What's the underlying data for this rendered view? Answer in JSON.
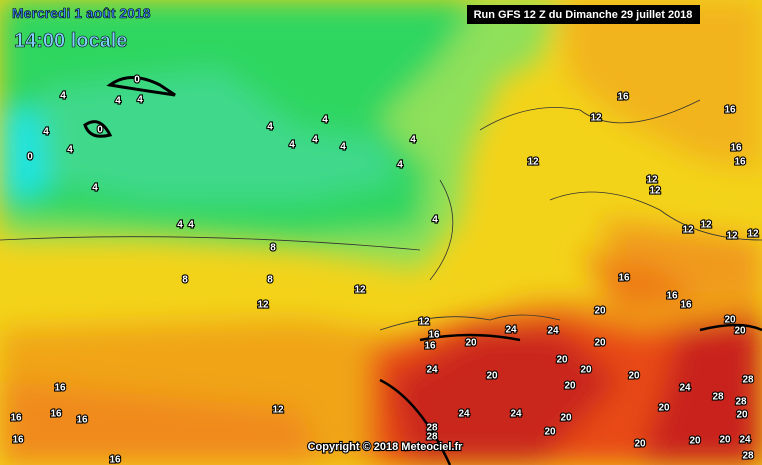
{
  "header": {
    "valid_time": "Mercredi 1 août 2018",
    "local_time": "14:00 locale",
    "run": "Run GFS 12 Z du Dimanche 29 juillet 2018"
  },
  "footer": {
    "copyright": "Copyright © 2018 Meteociel.fr"
  },
  "contour_labels": [
    0,
    4,
    4,
    4,
    4,
    0,
    0,
    4,
    4,
    4,
    4,
    4,
    4,
    4,
    4,
    4,
    4,
    4,
    4,
    8,
    8,
    8,
    12,
    12,
    16,
    12,
    16,
    16,
    16,
    12,
    12,
    12,
    12,
    12,
    12,
    12,
    16,
    16,
    16,
    12,
    16,
    16,
    24,
    20,
    24,
    20,
    20,
    20,
    20,
    24,
    20,
    20,
    20,
    20,
    20,
    24,
    28,
    28,
    28,
    20,
    24,
    24,
    20,
    20,
    20,
    16,
    16,
    16,
    16,
    16,
    12,
    28,
    28,
    20,
    20,
    24,
    20,
    28,
    16
  ]
}
